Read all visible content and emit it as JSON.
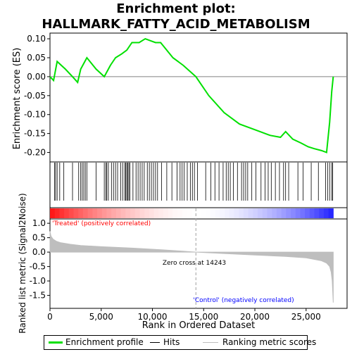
{
  "title_line1": "Enrichment plot:",
  "title_line2": "HALLMARK_FATTY_ACID_METABOLISM",
  "legend": {
    "enrichment": "Enrichment profile",
    "hits": "Hits",
    "ranking": "Ranking metric scores"
  },
  "colors": {
    "enrichment_line": "#00e000",
    "hits": "#000000",
    "ranking_fill": "#bebebe",
    "positive": "#ff0000",
    "negative": "#0000ff"
  },
  "chart_data": [
    {
      "type": "line",
      "panel": "enrichment",
      "ylabel": "Enrichment score (ES)",
      "yticks": [
        "0.10",
        "0.05",
        "0.00",
        "-0.05",
        "-0.10",
        "-0.15",
        "-0.20"
      ],
      "ylim": [
        -0.225,
        0.115
      ],
      "xlim": [
        0,
        29000
      ],
      "grid": false,
      "series": [
        {
          "x": [
            0,
            350,
            700,
            1500,
            2200,
            2700,
            3000,
            3600,
            4500,
            5300,
            5900,
            6400,
            7000,
            7500,
            8000,
            8700,
            9300,
            9800,
            10300,
            10800,
            12000,
            13000,
            14243,
            15500,
            17000,
            18500,
            19500,
            20500,
            21500,
            22500,
            23000,
            23700,
            24500,
            25200,
            25800,
            26500,
            27000,
            27300,
            27500,
            27650
          ],
          "y": [
            0.0,
            -0.01,
            0.04,
            0.02,
            0.0,
            -0.015,
            0.02,
            0.05,
            0.02,
            0.0,
            0.03,
            0.05,
            0.06,
            0.07,
            0.09,
            0.09,
            0.1,
            0.095,
            0.09,
            0.09,
            0.05,
            0.03,
            0.0,
            -0.05,
            -0.095,
            -0.125,
            -0.135,
            -0.145,
            -0.155,
            -0.16,
            -0.145,
            -0.165,
            -0.175,
            -0.185,
            -0.19,
            -0.195,
            -0.2,
            -0.12,
            -0.04,
            0.0
          ]
        }
      ]
    },
    {
      "type": "heatmap",
      "panel": "hits",
      "hit_positions": [
        450,
        550,
        700,
        950,
        1350,
        2200,
        2800,
        3000,
        3150,
        3300,
        3450,
        3600,
        4500,
        5300,
        5450,
        5550,
        5700,
        6000,
        6200,
        6400,
        6600,
        6900,
        7100,
        7300,
        7400,
        7500,
        7600,
        7700,
        7800,
        8100,
        8400,
        8600,
        8800,
        9000,
        9200,
        9500,
        9700,
        9900,
        10100,
        10300,
        10500,
        10900,
        11400,
        11900,
        12400,
        12700,
        12900,
        13100,
        13400,
        13700,
        13900,
        14100,
        14400,
        15200,
        15700,
        16100,
        16500,
        16900,
        17200,
        17400,
        17600,
        17900,
        18300,
        18700,
        18900,
        19100,
        19300,
        19700,
        20100,
        20600,
        21000,
        21300,
        21600,
        22000,
        22400,
        22800,
        23000,
        23300,
        24200,
        24700,
        25500,
        26200,
        26900,
        27100,
        27300,
        27500,
        27600
      ]
    },
    {
      "type": "area",
      "panel": "ranking",
      "ylabel": "Ranked list metric (Signal2Noise)",
      "xlabel": "Rank in Ordered Dataset",
      "yticks": [
        "1.0",
        "0.5",
        "0.0",
        "-0.5",
        "-1.0",
        "-1.5"
      ],
      "xticks": [
        "0",
        "5,000",
        "10,000",
        "15,000",
        "20,000",
        "25,000"
      ],
      "ylim": [
        -1.95,
        1.15
      ],
      "xlim": [
        0,
        29000
      ],
      "grid": false,
      "zero_cross": 14243,
      "series": [
        {
          "x": [
            0,
            100,
            300,
            600,
            1000,
            2000,
            3000,
            5000,
            8000,
            11000,
            14243,
            17000,
            20000,
            23000,
            25000,
            26500,
            27000,
            27300,
            27450,
            27550,
            27650
          ],
          "y": [
            0.72,
            0.55,
            0.45,
            0.38,
            0.33,
            0.27,
            0.23,
            0.19,
            0.14,
            0.08,
            0.0,
            -0.05,
            -0.1,
            -0.15,
            -0.2,
            -0.3,
            -0.38,
            -0.5,
            -0.7,
            -1.0,
            -1.75
          ]
        }
      ],
      "annotations": {
        "treated": "'Treated' (positively correlated)",
        "control": "'Control' (negatively correlated)",
        "zero_cross": "Zero cross at 14243"
      }
    }
  ]
}
